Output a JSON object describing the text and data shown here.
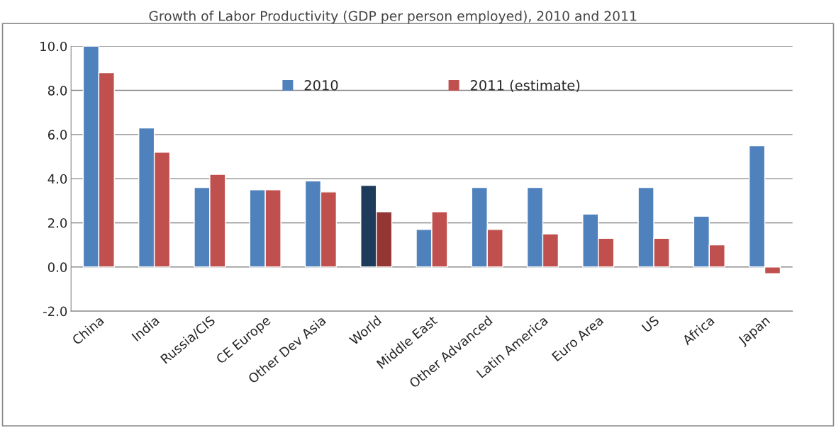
{
  "chart_data": {
    "type": "bar",
    "title": "Growth of Labor Productivity (GDP per person employed), 2010 and 2011",
    "categories": [
      "China",
      "India",
      "Russia/CIS",
      "CE Europe",
      "Other Dev Asia",
      "World",
      "Middle East",
      "Other Advanced",
      "Latin America",
      "Euro Area",
      "US",
      "Africa",
      "Japan"
    ],
    "series": [
      {
        "name": "2010",
        "color": "#4f81bd",
        "colors": [
          "#4f81bd",
          "#4f81bd",
          "#4f81bd",
          "#4f81bd",
          "#4f81bd",
          "#1f3b5c",
          "#4f81bd",
          "#4f81bd",
          "#4f81bd",
          "#4f81bd",
          "#4f81bd",
          "#4f81bd",
          "#4f81bd"
        ],
        "values": [
          10.0,
          6.3,
          3.6,
          3.5,
          3.9,
          3.7,
          1.7,
          3.6,
          3.6,
          2.4,
          3.6,
          2.3,
          5.5
        ]
      },
      {
        "name": "2011 (estimate)",
        "color": "#c0504d",
        "colors": [
          "#c0504d",
          "#c0504d",
          "#c0504d",
          "#c0504d",
          "#c0504d",
          "#943634",
          "#c0504d",
          "#c0504d",
          "#c0504d",
          "#c0504d",
          "#c0504d",
          "#c0504d",
          "#c0504d"
        ],
        "values": [
          8.8,
          5.2,
          4.2,
          3.5,
          3.4,
          2.5,
          2.5,
          1.7,
          1.5,
          1.3,
          1.3,
          1.0,
          -0.3
        ]
      }
    ],
    "ylim": [
      -2,
      10
    ],
    "yticks": [
      {
        "value": -2,
        "label": "-2.0"
      },
      {
        "value": 0,
        "label": "0.0"
      },
      {
        "value": 2,
        "label": "2.0"
      },
      {
        "value": 4,
        "label": "4.0"
      },
      {
        "value": 6,
        "label": "6.0"
      },
      {
        "value": 8,
        "label": "8.0"
      },
      {
        "value": 10,
        "label": "10.0"
      }
    ],
    "grid": "y",
    "legend": "top"
  }
}
